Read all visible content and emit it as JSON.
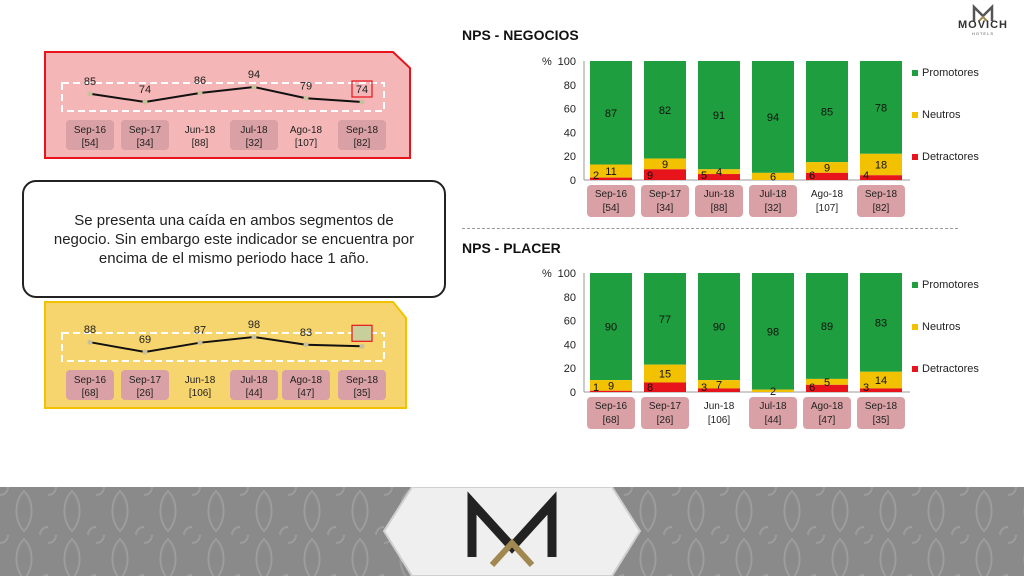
{
  "header": {
    "logo_name": "MOVICH",
    "logo_sub": "HOTELS"
  },
  "note": "Se presenta una caída en ambos segmentos de negocio. Sin embargo este indicador se encuentra por encima de el mismo periodo hace 1 año.",
  "colors": {
    "promotores": "#1e9e3e",
    "neutros": "#f2c200",
    "detractores": "#e8141c",
    "red_panel": "#f4b6b6",
    "red_border": "#e8141c",
    "yellow_panel": "#f7d56e",
    "yellow_border": "#f2c200",
    "label_bg": "#d9a0a5"
  },
  "chart_data": [
    {
      "type": "line",
      "segment": "negocios",
      "categories": [
        "Sep-16",
        "Sep-17",
        "Jun-18",
        "Jul-18",
        "Ago-18",
        "Sep-18"
      ],
      "counts": [
        "[54]",
        "[34]",
        "[88]",
        "[32]",
        "[107]",
        "[82]"
      ],
      "highlighted": [
        true,
        true,
        false,
        true,
        false,
        true
      ],
      "values": [
        85,
        74,
        86,
        94,
        79,
        74
      ],
      "boxed_last": true
    },
    {
      "type": "line",
      "segment": "placer",
      "categories": [
        "Sep-16",
        "Sep-17",
        "Jun-18",
        "Jul-18",
        "Ago-18",
        "Sep-18"
      ],
      "counts": [
        "[68]",
        "[26]",
        "[106]",
        "[44]",
        "[47]",
        "[35]"
      ],
      "highlighted": [
        true,
        true,
        false,
        true,
        true,
        true
      ],
      "values": [
        88,
        69,
        87,
        98,
        83,
        80
      ],
      "boxed_last": true
    },
    {
      "type": "bar",
      "stacked": true,
      "title": "NPS - NEGOCIOS",
      "ylabel": "%",
      "ylim": [
        0,
        100
      ],
      "yticks": [
        0,
        20,
        40,
        60,
        80,
        100
      ],
      "categories": [
        "Sep-16",
        "Sep-17",
        "Jun-18",
        "Jul-18",
        "Ago-18",
        "Sep-18"
      ],
      "counts": [
        "[54]",
        "[34]",
        "[88]",
        "[32]",
        "[107]",
        "[82]"
      ],
      "highlighted": [
        true,
        true,
        true,
        true,
        false,
        true
      ],
      "legend": [
        "Promotores",
        "Neutros",
        "Detractores"
      ],
      "legend_position": "right",
      "series": [
        {
          "name": "Detractores",
          "values": [
            2,
            9,
            5,
            0,
            6,
            4
          ],
          "labels": [
            "2",
            "9",
            "5",
            "",
            "6",
            "4"
          ]
        },
        {
          "name": "Neutros",
          "values": [
            11,
            9,
            4,
            6,
            9,
            18
          ],
          "labels": [
            "11",
            "9",
            "4",
            "6",
            "9",
            "18"
          ]
        },
        {
          "name": "Promotores",
          "values": [
            87,
            82,
            91,
            94,
            85,
            78
          ],
          "labels": [
            "87",
            "82",
            "91",
            "94",
            "85",
            "78"
          ]
        }
      ]
    },
    {
      "type": "bar",
      "stacked": true,
      "title": "NPS - PLACER",
      "ylabel": "%",
      "ylim": [
        0,
        100
      ],
      "yticks": [
        0,
        20,
        40,
        60,
        80,
        100
      ],
      "categories": [
        "Sep-16",
        "Sep-17",
        "Jun-18",
        "Jul-18",
        "Ago-18",
        "Sep-18"
      ],
      "counts": [
        "[68]",
        "[26]",
        "[106]",
        "[44]",
        "[47]",
        "[35]"
      ],
      "highlighted": [
        true,
        true,
        false,
        true,
        true,
        true
      ],
      "legend": [
        "Promotores",
        "Neutros",
        "Detractores"
      ],
      "legend_position": "right",
      "series": [
        {
          "name": "Detractores",
          "values": [
            1,
            8,
            3,
            0,
            6,
            3
          ],
          "labels": [
            "1",
            "8",
            "3",
            "",
            "6",
            "3"
          ]
        },
        {
          "name": "Neutros",
          "values": [
            9,
            15,
            7,
            2,
            5,
            14
          ],
          "labels": [
            "9",
            "15",
            "7",
            "2",
            "5",
            "14"
          ]
        },
        {
          "name": "Promotores",
          "values": [
            90,
            77,
            90,
            98,
            89,
            83
          ],
          "labels": [
            "90",
            "77",
            "90",
            "98",
            "89",
            "83"
          ]
        }
      ]
    }
  ]
}
